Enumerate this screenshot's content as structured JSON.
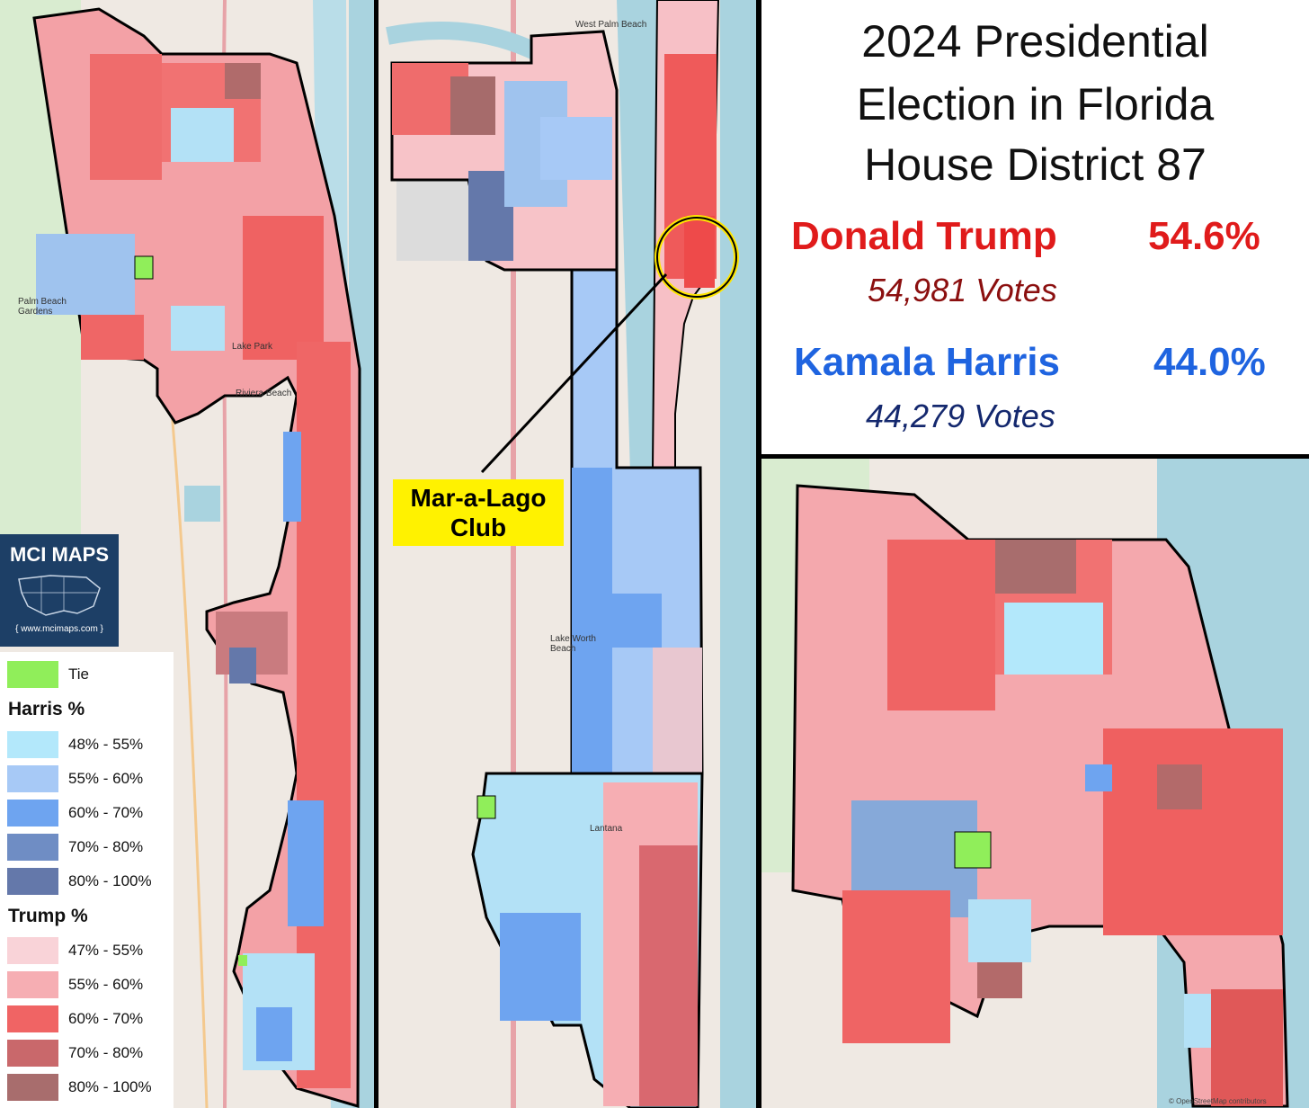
{
  "title": {
    "line1": "2024 Presidential",
    "line2": "Election in Florida",
    "line3": "House District 87"
  },
  "results": {
    "trump": {
      "name": "Donald Trump",
      "pct": "54.6%",
      "votes": "54,981  Votes",
      "color": "#e01b1b",
      "votes_color": "#8b0f0f"
    },
    "harris": {
      "name": "Kamala Harris",
      "pct": "44.0%",
      "votes": "44,279  Votes",
      "color": "#1f64e0",
      "votes_color": "#14286e"
    }
  },
  "callout": {
    "line1": "Mar-a-Lago",
    "line2": "Club"
  },
  "logo": {
    "name": "MCI MAPS",
    "url": "{ www.mcimaps.com }"
  },
  "legend": {
    "tie": {
      "label": "Tie",
      "color": "#90ee5a"
    },
    "harris_heading": "Harris %",
    "harris": [
      {
        "label": "48% - 55%",
        "color": "#b3e8fb"
      },
      {
        "label": "55% - 60%",
        "color": "#a7c9f6"
      },
      {
        "label": "60% - 70%",
        "color": "#6ea4f0"
      },
      {
        "label": "70% - 80%",
        "color": "#6f8dc4"
      },
      {
        "label": "80% - 100%",
        "color": "#6478aa"
      }
    ],
    "trump_heading": "Trump  %",
    "trump": [
      {
        "label": "47% - 55%",
        "color": "#f9d3d8"
      },
      {
        "label": "55% - 60%",
        "color": "#f6aeb3"
      },
      {
        "label": "60% - 70%",
        "color": "#f06464"
      },
      {
        "label": "70% - 80%",
        "color": "#c9686b"
      },
      {
        "label": "80% - 100%",
        "color": "#a86d6d"
      }
    ]
  },
  "map_labels": {
    "palm_beach_gardens": "Palm Beach Gardens",
    "riviera_beach": "Riviera Beach",
    "lake_park": "Lake Park",
    "lake_worth_beach": "Lake Worth Beach",
    "lantana": "Lantana",
    "west_palm_beach": "West Palm Beach",
    "attribution": "© OpenStreetMap contributors"
  }
}
